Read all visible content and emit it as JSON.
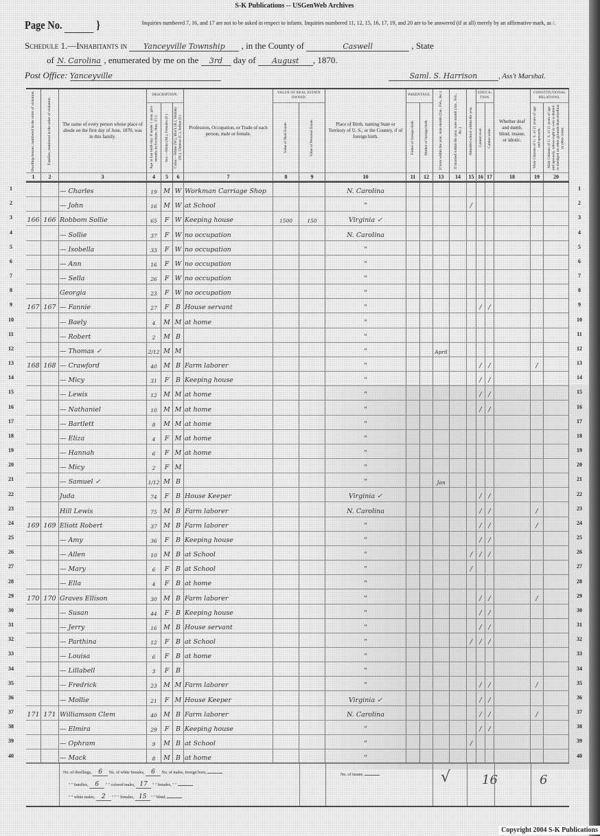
{
  "banner": "S-K Publications -- USGenWeb Archives",
  "page_no_label": "Page No.",
  "instructions": "Inquiries numbered 7, 16, and 17 are not to be asked in respect to infants. Inquiries numbered 11, 12, 15, 16, 17, 19, and 20 are to be answered (if at all) merely by an affirmative mark, as /.",
  "schedule": {
    "label": "Schedule 1.—Inhabitants in",
    "township": "Yanceyville Township",
    "county_label": ", in the County of",
    "county": "Caswell",
    "state_label": ", State",
    "of_label": "of",
    "state": "N. Carolina",
    "enumerated_label": ", enumerated by me on the",
    "day": "3rd",
    "day_of_label": "day of",
    "month": "August",
    "year": ", 1870.",
    "post_office_label": "Post Office:",
    "post_office": "Yanceyville",
    "marshal_signature": "Saml. S. Harrison",
    "marshal_label": ", Ass't Marshal."
  },
  "headers": {
    "groups": {
      "description": "Description.",
      "real_estate": "Value of Real Estate owned.",
      "parentage": "Parentage.",
      "education": "Educa-tion.",
      "constitutional": "Constitutional Relations."
    },
    "columns": [
      "Dwelling-houses, numbered in the order of visitation.",
      "Families, numbered in the order of visitation.",
      "The name of every person whose place of abode on the first day of June, 1870, was in this family.",
      "Age at last birth-day. If under 1 year, give months in fractions, thus, 3/12.",
      "Sex.—Males (M.), Females (F.)",
      "Color.—White (W.), Black (B.), Mulatto (M.), Chinese (C.), Indian (I.)",
      "Profession, Occupation, or Trade of each person, male or female.",
      "Value of Real Estate.",
      "Value of Personal Estate.",
      "Place of Birth, naming State or Territory of U. S.; or the Country, if of foreign birth.",
      "Father of foreign birth.",
      "Mother of foreign birth.",
      "If born within the year, state month (Jan., Feb., &c.)",
      "If married within the year, state month (Jan., Feb., &c.)",
      "Attended school within the year.",
      "Cannot read.",
      "Cannot write.",
      "Whether deaf and dumb, blind, insane, or idiotic.",
      "Male Citizens of U. S. of 21 years of age and upwards.",
      "Male Citizens of U. S. of 21 years of age and upwards, whose right to vote is denied or abridged on other grounds than rebellion or other crime."
    ],
    "numbers": [
      "1",
      "2",
      "3",
      "4",
      "5",
      "6",
      "7",
      "8",
      "9",
      "10",
      "11",
      "12",
      "13",
      "14",
      "15",
      "16",
      "17",
      "18",
      "19",
      "20"
    ]
  },
  "rows": [
    {
      "n": "1",
      "d": "",
      "f": "",
      "name": "— Charles",
      "age": "19",
      "sex": "M",
      "color": "W",
      "occ": "Workman Carriage Shop",
      "re": "",
      "pe": "",
      "birth": "N. Carolina",
      "m13": "",
      "m15": "",
      "m16": "",
      "m17": "",
      "m19": ""
    },
    {
      "n": "2",
      "d": "",
      "f": "",
      "name": "— John",
      "age": "16",
      "sex": "M",
      "color": "W",
      "occ": "at School",
      "re": "",
      "pe": "",
      "birth": "\"",
      "m13": "",
      "m15": "/",
      "m16": "",
      "m17": "",
      "m19": ""
    },
    {
      "n": "3",
      "d": "166",
      "f": "166",
      "name": "Robbom Sollie",
      "age": "65",
      "sex": "F",
      "color": "W",
      "occ": "Keeping house",
      "re": "1500",
      "pe": "150",
      "birth": "Virginia ✓",
      "m13": "",
      "m15": "",
      "m16": "",
      "m17": "",
      "m19": ""
    },
    {
      "n": "4",
      "d": "",
      "f": "",
      "name": "— Sollie",
      "age": "37",
      "sex": "F",
      "color": "W",
      "occ": "no occupation",
      "re": "",
      "pe": "",
      "birth": "N. Carolina",
      "m13": "",
      "m15": "",
      "m16": "",
      "m17": "",
      "m19": ""
    },
    {
      "n": "5",
      "d": "",
      "f": "",
      "name": "— Isobella",
      "age": "33",
      "sex": "F",
      "color": "W",
      "occ": "no occupation",
      "re": "",
      "pe": "",
      "birth": "\"",
      "m13": "",
      "m15": "",
      "m16": "",
      "m17": "",
      "m19": ""
    },
    {
      "n": "6",
      "d": "",
      "f": "",
      "name": "— Ann",
      "age": "16",
      "sex": "F",
      "color": "W",
      "occ": "no occupation",
      "re": "",
      "pe": "",
      "birth": "\"",
      "m13": "",
      "m15": "",
      "m16": "",
      "m17": "",
      "m19": ""
    },
    {
      "n": "7",
      "d": "",
      "f": "",
      "name": "— Sella",
      "age": "26",
      "sex": "F",
      "color": "W",
      "occ": "no occupation",
      "re": "",
      "pe": "",
      "birth": "\"",
      "m13": "",
      "m15": "",
      "m16": "",
      "m17": "",
      "m19": ""
    },
    {
      "n": "8",
      "d": "",
      "f": "",
      "name": "Georgia",
      "age": "23",
      "sex": "F",
      "color": "W",
      "occ": "no occupation",
      "re": "",
      "pe": "",
      "birth": "\"",
      "m13": "",
      "m15": "",
      "m16": "",
      "m17": "",
      "m19": ""
    },
    {
      "n": "9",
      "d": "167",
      "f": "167",
      "name": "— Fannie",
      "age": "27",
      "sex": "F",
      "color": "B",
      "occ": "House servant",
      "re": "",
      "pe": "",
      "birth": "\"",
      "m13": "",
      "m15": "",
      "m16": "/",
      "m17": "/",
      "m19": ""
    },
    {
      "n": "10",
      "d": "",
      "f": "",
      "name": "— Baely",
      "age": "4",
      "sex": "M",
      "color": "M",
      "occ": "at home",
      "re": "",
      "pe": "",
      "birth": "\"",
      "m13": "",
      "m15": "",
      "m16": "",
      "m17": "",
      "m19": ""
    },
    {
      "n": "11",
      "d": "",
      "f": "",
      "name": "— Robert",
      "age": "2",
      "sex": "M",
      "color": "B",
      "occ": "",
      "re": "",
      "pe": "",
      "birth": "\"",
      "m13": "",
      "m15": "",
      "m16": "",
      "m17": "",
      "m19": ""
    },
    {
      "n": "12",
      "d": "",
      "f": "",
      "name": "— Thomas ✓",
      "age": "2/12",
      "sex": "M",
      "color": "M",
      "occ": "",
      "re": "",
      "pe": "",
      "birth": "\"",
      "m13": "April",
      "m15": "",
      "m16": "",
      "m17": "",
      "m19": ""
    },
    {
      "n": "13",
      "d": "168",
      "f": "168",
      "name": "— Crawford",
      "age": "40",
      "sex": "M",
      "color": "B",
      "occ": "Farm laborer",
      "re": "",
      "pe": "",
      "birth": "\"",
      "m13": "",
      "m15": "",
      "m16": "/",
      "m17": "/",
      "m19": "/"
    },
    {
      "n": "14",
      "d": "",
      "f": "",
      "name": "— Micy",
      "age": "31",
      "sex": "F",
      "color": "B",
      "occ": "Keeping house",
      "re": "",
      "pe": "",
      "birth": "\"",
      "m13": "",
      "m15": "",
      "m16": "/",
      "m17": "/",
      "m19": ""
    },
    {
      "n": "15",
      "d": "",
      "f": "",
      "name": "— Lewis",
      "age": "12",
      "sex": "M",
      "color": "M",
      "occ": "at home",
      "re": "",
      "pe": "",
      "birth": "\"",
      "m13": "",
      "m15": "",
      "m16": "/",
      "m17": "/",
      "m19": ""
    },
    {
      "n": "16",
      "d": "",
      "f": "",
      "name": "— Nathaniel",
      "age": "10",
      "sex": "M",
      "color": "M",
      "occ": "at home",
      "re": "",
      "pe": "",
      "birth": "\"",
      "m13": "",
      "m15": "",
      "m16": "/",
      "m17": "/",
      "m19": ""
    },
    {
      "n": "17",
      "d": "",
      "f": "",
      "name": "— Bartlett",
      "age": "8",
      "sex": "M",
      "color": "M",
      "occ": "at home",
      "re": "",
      "pe": "",
      "birth": "\"",
      "m13": "",
      "m15": "",
      "m16": "",
      "m17": "",
      "m19": ""
    },
    {
      "n": "18",
      "d": "",
      "f": "",
      "name": "— Eliza",
      "age": "4",
      "sex": "F",
      "color": "M",
      "occ": "at home",
      "re": "",
      "pe": "",
      "birth": "\"",
      "m13": "",
      "m15": "",
      "m16": "",
      "m17": "",
      "m19": ""
    },
    {
      "n": "19",
      "d": "",
      "f": "",
      "name": "— Hannah",
      "age": "6",
      "sex": "F",
      "color": "M",
      "occ": "at home",
      "re": "",
      "pe": "",
      "birth": "\"",
      "m13": "",
      "m15": "",
      "m16": "",
      "m17": "",
      "m19": ""
    },
    {
      "n": "20",
      "d": "",
      "f": "",
      "name": "— Micy",
      "age": "2",
      "sex": "F",
      "color": "M",
      "occ": "",
      "re": "",
      "pe": "",
      "birth": "\"",
      "m13": "",
      "m15": "",
      "m16": "",
      "m17": "",
      "m19": ""
    },
    {
      "n": "21",
      "d": "",
      "f": "",
      "name": "— Samuel ✓",
      "age": "1/12",
      "sex": "M",
      "color": "B",
      "occ": "",
      "re": "",
      "pe": "",
      "birth": "\"",
      "m13": "Jan",
      "m15": "",
      "m16": "",
      "m17": "",
      "m19": ""
    },
    {
      "n": "22",
      "d": "",
      "f": "",
      "name": "Juda",
      "age": "74",
      "sex": "F",
      "color": "B",
      "occ": "House Keeper",
      "re": "",
      "pe": "",
      "birth": "Virginia ✓",
      "m13": "",
      "m15": "",
      "m16": "/",
      "m17": "/",
      "m19": ""
    },
    {
      "n": "23",
      "d": "",
      "f": "",
      "name": "Hill Lewis",
      "age": "75",
      "sex": "M",
      "color": "B",
      "occ": "Farm laborer",
      "re": "",
      "pe": "",
      "birth": "N. Carolina",
      "m13": "",
      "m15": "",
      "m16": "/",
      "m17": "/",
      "m19": "/"
    },
    {
      "n": "24",
      "d": "169",
      "f": "169",
      "name": "Eliott Robert",
      "age": "37",
      "sex": "M",
      "color": "B",
      "occ": "Farm laborer",
      "re": "",
      "pe": "",
      "birth": "\"",
      "m13": "",
      "m15": "",
      "m16": "/",
      "m17": "/",
      "m19": "/"
    },
    {
      "n": "25",
      "d": "",
      "f": "",
      "name": "— Amy",
      "age": "36",
      "sex": "F",
      "color": "B",
      "occ": "Keeping house",
      "re": "",
      "pe": "",
      "birth": "\"",
      "m13": "",
      "m15": "",
      "m16": "/",
      "m17": "/",
      "m19": ""
    },
    {
      "n": "26",
      "d": "",
      "f": "",
      "name": "— Allen",
      "age": "10",
      "sex": "M",
      "color": "B",
      "occ": "at School",
      "re": "",
      "pe": "",
      "birth": "\"",
      "m13": "",
      "m15": "/",
      "m16": "/",
      "m17": "/",
      "m19": ""
    },
    {
      "n": "27",
      "d": "",
      "f": "",
      "name": "— Mary",
      "age": "6",
      "sex": "F",
      "color": "B",
      "occ": "at School",
      "re": "",
      "pe": "",
      "birth": "\"",
      "m13": "",
      "m15": "/",
      "m16": "",
      "m17": "",
      "m19": ""
    },
    {
      "n": "28",
      "d": "",
      "f": "",
      "name": "— Ella",
      "age": "4",
      "sex": "F",
      "color": "B",
      "occ": "at home",
      "re": "",
      "pe": "",
      "birth": "\"",
      "m13": "",
      "m15": "",
      "m16": "",
      "m17": "",
      "m19": ""
    },
    {
      "n": "29",
      "d": "170",
      "f": "170",
      "name": "Graves Ellison",
      "age": "30",
      "sex": "M",
      "color": "B",
      "occ": "Farm laborer",
      "re": "",
      "pe": "",
      "birth": "\"",
      "m13": "",
      "m15": "",
      "m16": "/",
      "m17": "/",
      "m19": "/"
    },
    {
      "n": "30",
      "d": "",
      "f": "",
      "name": "— Susan",
      "age": "44",
      "sex": "F",
      "color": "B",
      "occ": "Keeping house",
      "re": "",
      "pe": "",
      "birth": "\"",
      "m13": "",
      "m15": "",
      "m16": "/",
      "m17": "/",
      "m19": ""
    },
    {
      "n": "31",
      "d": "",
      "f": "",
      "name": "— Jerry",
      "age": "16",
      "sex": "M",
      "color": "B",
      "occ": "House servant",
      "re": "",
      "pe": "",
      "birth": "\"",
      "m13": "",
      "m15": "",
      "m16": "/",
      "m17": "/",
      "m19": ""
    },
    {
      "n": "32",
      "d": "",
      "f": "",
      "name": "— Parthina",
      "age": "12",
      "sex": "F",
      "color": "B",
      "occ": "at School",
      "re": "",
      "pe": "",
      "birth": "\"",
      "m13": "",
      "m15": "/",
      "m16": "/",
      "m17": "/",
      "m19": ""
    },
    {
      "n": "33",
      "d": "",
      "f": "",
      "name": "— Louisa",
      "age": "6",
      "sex": "F",
      "color": "B",
      "occ": "at home",
      "re": "",
      "pe": "",
      "birth": "\"",
      "m13": "",
      "m15": "",
      "m16": "",
      "m17": "",
      "m19": ""
    },
    {
      "n": "34",
      "d": "",
      "f": "",
      "name": "— Lillabell",
      "age": "3",
      "sex": "F",
      "color": "B",
      "occ": "",
      "re": "",
      "pe": "",
      "birth": "\"",
      "m13": "",
      "m15": "",
      "m16": "",
      "m17": "",
      "m19": ""
    },
    {
      "n": "35",
      "d": "",
      "f": "",
      "name": "— Fredrick",
      "age": "23",
      "sex": "M",
      "color": "M",
      "occ": "Farm laborer",
      "re": "",
      "pe": "",
      "birth": "\"",
      "m13": "",
      "m15": "",
      "m16": "/",
      "m17": "/",
      "m19": "/"
    },
    {
      "n": "36",
      "d": "",
      "f": "",
      "name": "— Mollie",
      "age": "21",
      "sex": "F",
      "color": "M",
      "occ": "House Keeper",
      "re": "",
      "pe": "",
      "birth": "Virginia ✓",
      "m13": "",
      "m15": "",
      "m16": "/",
      "m17": "/",
      "m19": ""
    },
    {
      "n": "37",
      "d": "171",
      "f": "171",
      "name": "Williamson Clem",
      "age": "40",
      "sex": "M",
      "color": "B",
      "occ": "Farm laborer",
      "re": "",
      "pe": "",
      "birth": "N. Carolina",
      "m13": "",
      "m15": "",
      "m16": "/",
      "m17": "/",
      "m19": "/"
    },
    {
      "n": "38",
      "d": "",
      "f": "",
      "name": "— Elmira",
      "age": "29",
      "sex": "F",
      "color": "B",
      "occ": "Keeping house",
      "re": "",
      "pe": "",
      "birth": "\"",
      "m13": "",
      "m15": "",
      "m16": "/",
      "m17": "/",
      "m19": ""
    },
    {
      "n": "39",
      "d": "",
      "f": "",
      "name": "— Ophram",
      "age": "9",
      "sex": "M",
      "color": "B",
      "occ": "at School",
      "re": "",
      "pe": "",
      "birth": "\"",
      "m13": "",
      "m15": "/",
      "m16": "",
      "m17": "",
      "m19": ""
    },
    {
      "n": "40",
      "d": "",
      "f": "",
      "name": "— Mack",
      "age": "8",
      "sex": "M",
      "color": "B",
      "occ": "at home",
      "re": "",
      "pe": "",
      "birth": "\"",
      "m13": "",
      "m15": "",
      "m16": "",
      "m17": "",
      "m19": ""
    }
  ],
  "summary": {
    "dwellings_label": "No. of dwellings,",
    "dwellings": "6",
    "white_females_label": "No. of white females,",
    "white_females": "6",
    "foreign_males_label": "No. of males, foreign born,",
    "foreign_males": "",
    "families_label": "\" \" families,",
    "families": "6",
    "colored_males_label": "\" \" colored males,",
    "colored_males": "17",
    "foreign_females_label": "\" \" females, \" \"",
    "foreign_females": "",
    "white_males_label": "\" \" white males,",
    "white_males": "2",
    "colored_females_label": "\" \" \" females,",
    "colored_females": "15",
    "blind_label": "\" \" blind,",
    "blind": "",
    "insane_label": "No. of insane,",
    "insane": "",
    "tally_1": "√",
    "tally_2": "16",
    "tally_3": "6"
  },
  "copyright": "Copyright 2004 S-K Publications"
}
